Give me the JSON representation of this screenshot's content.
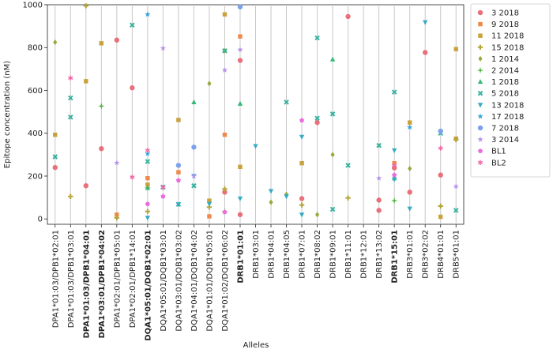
{
  "chart_data": {
    "type": "scatter",
    "title": "",
    "xlabel": "Alleles",
    "ylabel": "Epitope concentration (nM)",
    "ylim": [
      -25,
      1000
    ],
    "yticks": [
      0,
      200,
      400,
      600,
      800,
      1000
    ],
    "grid": "vertical",
    "legend_position": "right-outside",
    "categories": [
      "DPA1*01:03/DPB1*02:01",
      "DPA1*01:03/DPB1*03:01",
      "DPA1*01:03/DPB1*04:01",
      "DPA1*03:01/DPB1*04:02",
      "DPA1*02:01/DPB1*05:01",
      "DPA1*02:01/DPB1*14:01",
      "DQA1*05:01/DQB1*02:01",
      "DQA1*05:01/DQB1*03:01",
      "DQA1*03:01/DQB1*03:02",
      "DQA1*04:01/DQB1*04:02",
      "DQA1*01:01/DQB1*05:01",
      "DQA1*01:02/DQB1*06:02",
      "DRB1*01:01",
      "DRB1*03:01",
      "DRB1*04:01",
      "DRB1*04:05",
      "DRB1*07:01",
      "DRB1*08:02",
      "DRB1*09:01",
      "DRB1*11:01",
      "DRB1*12:01",
      "DRB1*13:02",
      "DRB1*15:01",
      "DRB3*01:01",
      "DRB3*02:02",
      "DRB4*01:01",
      "DRB5*01:01"
    ],
    "bold_categories": [
      "DPA1*01:03/DPB1*04:01",
      "DPA1*03:01/DPB1*04:02",
      "DQA1*05:01/DQB1*02:01",
      "DRB1*01:01",
      "DRB1*15:01"
    ],
    "series": [
      {
        "name": "3 2018",
        "color": "#e8707a",
        "marker": "circle",
        "points": [
          [
            0,
            240
          ],
          [
            2,
            155
          ],
          [
            3,
            328
          ],
          [
            4,
            835
          ],
          [
            5,
            612
          ],
          [
            11,
            125
          ],
          [
            12,
            740
          ],
          [
            12,
            20
          ],
          [
            16,
            95
          ],
          [
            17,
            450
          ],
          [
            19,
            945
          ],
          [
            21,
            88
          ],
          [
            21,
            40
          ],
          [
            22,
            238
          ],
          [
            23,
            125
          ],
          [
            24,
            777
          ],
          [
            25,
            205
          ]
        ]
      },
      {
        "name": "9 2018",
        "color": "#f08a4b",
        "marker": "square",
        "points": [
          [
            4,
            20
          ],
          [
            6,
            190
          ],
          [
            8,
            218
          ],
          [
            10,
            12
          ],
          [
            11,
            393
          ],
          [
            12,
            852
          ],
          [
            22,
            260
          ]
        ]
      },
      {
        "name": "11 2018",
        "color": "#c9a23c",
        "marker": "square",
        "points": [
          [
            0,
            393
          ],
          [
            2,
            643
          ],
          [
            3,
            820
          ],
          [
            6,
            160
          ],
          [
            8,
            462
          ],
          [
            10,
            85
          ],
          [
            11,
            955
          ],
          [
            12,
            243
          ],
          [
            16,
            260
          ],
          [
            23,
            450
          ],
          [
            25,
            10
          ],
          [
            26,
            793
          ],
          [
            26,
            375
          ]
        ]
      },
      {
        "name": "15 2018",
        "color": "#b4a53a",
        "marker": "plus",
        "points": [
          [
            1,
            105
          ],
          [
            2,
            995
          ],
          [
            4,
            5
          ],
          [
            6,
            35
          ],
          [
            10,
            55
          ],
          [
            11,
            140
          ],
          [
            16,
            65
          ],
          [
            19,
            98
          ],
          [
            25,
            60
          ],
          [
            26,
            370
          ]
        ]
      },
      {
        "name": "1 2014",
        "color": "#93ab3d",
        "marker": "diamond",
        "points": [
          [
            0,
            825
          ],
          [
            10,
            632
          ],
          [
            11,
            785
          ],
          [
            14,
            78
          ],
          [
            15,
            115
          ],
          [
            17,
            20
          ],
          [
            18,
            300
          ],
          [
            23,
            235
          ]
        ]
      },
      {
        "name": "2 2014",
        "color": "#4eb53a",
        "marker": "diamond4",
        "points": [
          [
            3,
            527
          ],
          [
            6,
            145
          ],
          [
            11,
            35
          ],
          [
            22,
            85
          ]
        ]
      },
      {
        "name": "1 2018",
        "color": "#38b878",
        "marker": "triangle",
        "points": [
          [
            6,
            145
          ],
          [
            9,
            545
          ],
          [
            12,
            538
          ],
          [
            18,
            745
          ],
          [
            22,
            190
          ]
        ]
      },
      {
        "name": "5 2018",
        "color": "#36b3a0",
        "marker": "x",
        "points": [
          [
            0,
            290
          ],
          [
            1,
            475
          ],
          [
            1,
            565
          ],
          [
            5,
            905
          ],
          [
            6,
            268
          ],
          [
            7,
            148
          ],
          [
            8,
            68
          ],
          [
            9,
            155
          ],
          [
            11,
            785
          ],
          [
            15,
            545
          ],
          [
            17,
            845
          ],
          [
            17,
            470
          ],
          [
            18,
            490
          ],
          [
            18,
            45
          ],
          [
            19,
            250
          ],
          [
            21,
            343
          ],
          [
            22,
            592
          ],
          [
            25,
            400
          ],
          [
            26,
            40
          ]
        ]
      },
      {
        "name": "13 2018",
        "color": "#36abc2",
        "marker": "triangle-down",
        "points": [
          [
            6,
            5
          ],
          [
            8,
            68
          ],
          [
            9,
            200
          ],
          [
            10,
            70
          ],
          [
            12,
            95
          ],
          [
            13,
            340
          ],
          [
            14,
            130
          ],
          [
            15,
            105
          ],
          [
            16,
            383
          ],
          [
            16,
            20
          ],
          [
            22,
            320
          ],
          [
            22,
            185
          ],
          [
            23,
            48
          ],
          [
            24,
            918
          ]
        ]
      },
      {
        "name": "17 2018",
        "color": "#39a3dc",
        "marker": "star",
        "points": [
          [
            6,
            955
          ],
          [
            6,
            305
          ],
          [
            23,
            428
          ]
        ]
      },
      {
        "name": "7 2018",
        "color": "#7da1ec",
        "marker": "circle",
        "points": [
          [
            8,
            250
          ],
          [
            9,
            335
          ],
          [
            12,
            990
          ],
          [
            25,
            410
          ]
        ]
      },
      {
        "name": "3 2014",
        "color": "#b793ee",
        "marker": "star",
        "points": [
          [
            4,
            262
          ],
          [
            7,
            797
          ],
          [
            9,
            200
          ],
          [
            11,
            695
          ],
          [
            12,
            790
          ],
          [
            21,
            190
          ],
          [
            26,
            152
          ]
        ]
      },
      {
        "name": "BL1",
        "color": "#ec6bdd",
        "marker": "pentagon",
        "points": [
          [
            6,
            70
          ],
          [
            7,
            105
          ],
          [
            8,
            180
          ],
          [
            11,
            32
          ],
          [
            16,
            460
          ],
          [
            22,
            205
          ]
        ]
      },
      {
        "name": "BL2",
        "color": "#f06aa8",
        "marker": "asterisk",
        "points": [
          [
            1,
            658
          ],
          [
            5,
            195
          ],
          [
            6,
            320
          ],
          [
            7,
            148
          ],
          [
            22,
            250
          ],
          [
            25,
            330
          ]
        ]
      }
    ]
  }
}
